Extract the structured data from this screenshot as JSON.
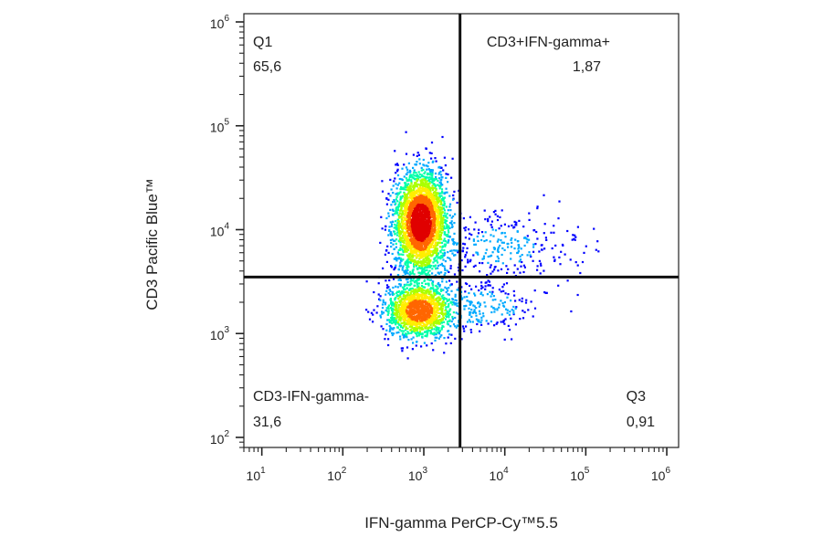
{
  "chart_data": {
    "type": "scatter",
    "style": "density dot plot (flow cytometry), jet colour scale",
    "xlabel": "IFN-gamma PerCP-Cy™5.5",
    "ylabel": "CD3 Pacific Blue™",
    "x_scale": "log",
    "y_scale": "log",
    "xlim": [
      6,
      1400000
    ],
    "ylim": [
      80,
      1200000
    ],
    "x_ticks": [
      {
        "value": 10,
        "base": "10",
        "exp": "1"
      },
      {
        "value": 100,
        "base": "10",
        "exp": "2"
      },
      {
        "value": 1000,
        "base": "10",
        "exp": "3"
      },
      {
        "value": 10000,
        "base": "10",
        "exp": "4"
      },
      {
        "value": 100000,
        "base": "10",
        "exp": "5"
      },
      {
        "value": 1000000,
        "base": "10",
        "exp": "6"
      }
    ],
    "y_ticks": [
      {
        "value": 100,
        "base": "10",
        "exp": "2"
      },
      {
        "value": 1000,
        "base": "10",
        "exp": "3"
      },
      {
        "value": 10000,
        "base": "10",
        "exp": "4"
      },
      {
        "value": 100000,
        "base": "10",
        "exp": "5"
      },
      {
        "value": 1000000,
        "base": "10",
        "exp": "6"
      }
    ],
    "gate": {
      "x": 2800,
      "y": 3500
    },
    "quadrants": [
      {
        "name": "Q1",
        "value": "65,6",
        "position": "top-left"
      },
      {
        "name": "CD3+IFN-gamma+",
        "value": "1,87",
        "position": "top-right"
      },
      {
        "name": "CD3-IFN-gamma-",
        "value": "31,6",
        "position": "bottom-left"
      },
      {
        "name": "Q3",
        "value": "0,91",
        "position": "bottom-right"
      }
    ],
    "populations": [
      {
        "name": "",
        "x_center": 900,
        "y_center": 12000,
        "spread_x_decades": 0.16,
        "spread_y_decades": 0.24,
        "weight": 0.6
      },
      {
        "name": "",
        "x_center": 850,
        "y_center": 1700,
        "spread_x_decades": 0.2,
        "spread_y_decades": 0.13,
        "weight": 0.3
      },
      {
        "name": "",
        "x_center": 9000,
        "y_center": 7000,
        "spread_x_decades": 0.45,
        "spread_y_decades": 0.2,
        "weight": 0.06
      },
      {
        "name": "",
        "x_center": 5000,
        "y_center": 1800,
        "spread_x_decades": 0.35,
        "spread_y_decades": 0.12,
        "weight": 0.04
      }
    ],
    "colormap": [
      "#0000ff",
      "#00aaff",
      "#00ffaa",
      "#aaff00",
      "#ffee00",
      "#ff6600",
      "#e00000"
    ],
    "grid": false,
    "legend": "none"
  }
}
